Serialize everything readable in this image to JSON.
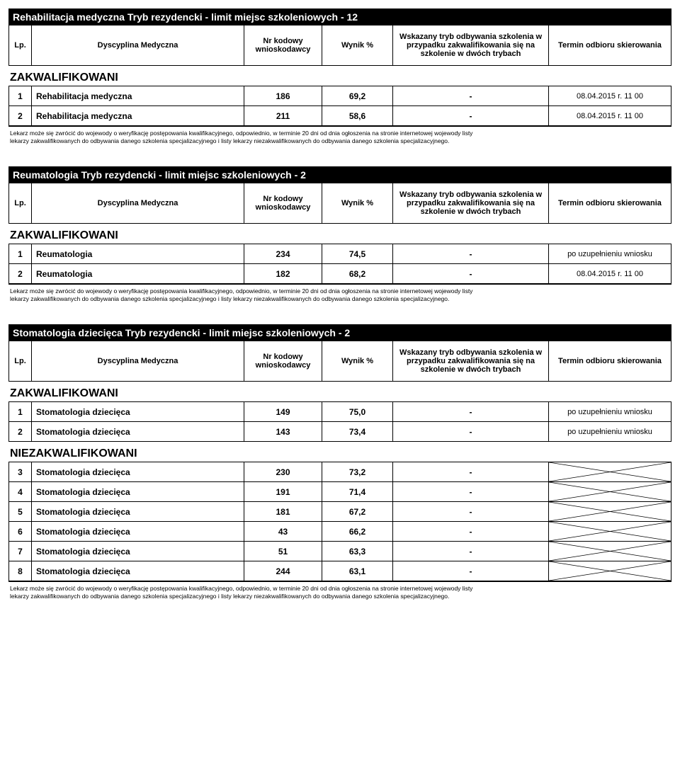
{
  "columns": {
    "lp": "Lp.",
    "disc": "Dyscyplina Medyczna",
    "kod": "Nr kodowy wnioskodawcy",
    "wyn": "Wynik %",
    "trb": "Wskazany tryb odbywania szkolenia w przypadku zakwalifikowania się na szkolenie w dwóch trybach",
    "term": "Termin odbioru skierowania"
  },
  "group_labels": {
    "qual": "ZAKWALIFIKOWANI",
    "nqual": "NIEZAKWALIFIKOWANI"
  },
  "footnote_l1": "Lekarz może się zwrócić do wojewody o weryfikację postępowania kwalifikacyjnego, odpowiednio, w terminie 20 dni od dnia ogłoszenia na stronie internetowej wojewody listy",
  "footnote_l2": "lekarzy zakwalifikowanych do odbywania danego szkolenia specjalizacyjnego i listy lekarzy niezakwalifikowanych do odbywania danego szkolenia specjalizacyjnego.",
  "term_date": "08.04.2015 r. 11 00",
  "term_supp": "po uzupełnieniu wniosku",
  "sections": [
    {
      "title": "Rehabilitacja medyczna Tryb rezydencki  - limit miejsc szkoleniowych - 12",
      "groups": [
        {
          "kind": "qual",
          "rows": [
            {
              "lp": "1",
              "disc": "Rehabilitacja medyczna",
              "kod": "186",
              "wyn": "69,2",
              "trb": "-",
              "term_key": "date"
            },
            {
              "lp": "2",
              "disc": "Rehabilitacja medyczna",
              "kod": "211",
              "wyn": "58,6",
              "trb": "-",
              "term_key": "date"
            }
          ]
        }
      ]
    },
    {
      "title": "Reumatologia Tryb rezydencki  - limit miejsc szkoleniowych - 2",
      "groups": [
        {
          "kind": "qual",
          "rows": [
            {
              "lp": "1",
              "disc": "Reumatologia",
              "kod": "234",
              "wyn": "74,5",
              "trb": "-",
              "term_key": "supp"
            },
            {
              "lp": "2",
              "disc": "Reumatologia",
              "kod": "182",
              "wyn": "68,2",
              "trb": "-",
              "term_key": "date"
            }
          ]
        }
      ]
    },
    {
      "title": "Stomatologia dziecięca Tryb rezydencki  - limit miejsc szkoleniowych - 2",
      "groups": [
        {
          "kind": "qual",
          "rows": [
            {
              "lp": "1",
              "disc": "Stomatologia dziecięca",
              "kod": "149",
              "wyn": "75,0",
              "trb": "-",
              "term_key": "supp"
            },
            {
              "lp": "2",
              "disc": "Stomatologia dziecięca",
              "kod": "143",
              "wyn": "73,4",
              "trb": "-",
              "term_key": "supp"
            }
          ]
        },
        {
          "kind": "nqual",
          "rows": [
            {
              "lp": "3",
              "disc": "Stomatologia dziecięca",
              "kod": "230",
              "wyn": "73,2",
              "trb": "-",
              "term_key": "x"
            },
            {
              "lp": "4",
              "disc": "Stomatologia dziecięca",
              "kod": "191",
              "wyn": "71,4",
              "trb": "-",
              "term_key": "x"
            },
            {
              "lp": "5",
              "disc": "Stomatologia dziecięca",
              "kod": "181",
              "wyn": "67,2",
              "trb": "-",
              "term_key": "x"
            },
            {
              "lp": "6",
              "disc": "Stomatologia dziecięca",
              "kod": "43",
              "wyn": "66,2",
              "trb": "-",
              "term_key": "x"
            },
            {
              "lp": "7",
              "disc": "Stomatologia dziecięca",
              "kod": "51",
              "wyn": "63,3",
              "trb": "-",
              "term_key": "x"
            },
            {
              "lp": "8",
              "disc": "Stomatologia dziecięca",
              "kod": "244",
              "wyn": "63,1",
              "trb": "-",
              "term_key": "x"
            }
          ]
        }
      ]
    }
  ]
}
